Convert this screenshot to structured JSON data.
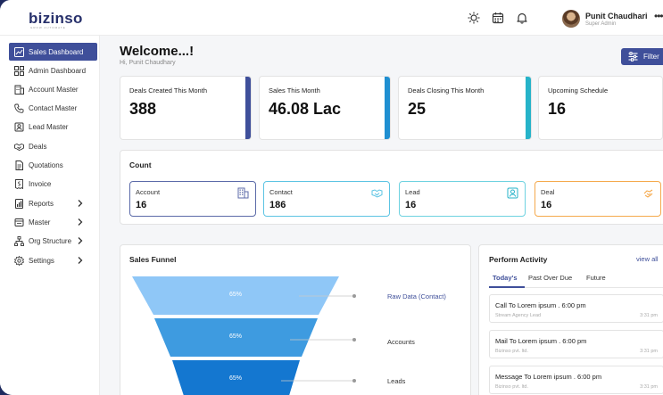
{
  "header": {
    "logo": "bizinso",
    "logo_sub": "GROW AUTOMATE",
    "user_name": "Punit Chaudhari",
    "user_role": "Super Admin",
    "more": "•••"
  },
  "sidebar": {
    "items": [
      {
        "label": "Sales Dashboard",
        "icon": "dashboard-icon"
      },
      {
        "label": "Admin Dashboard",
        "icon": "grid-icon"
      },
      {
        "label": "Account Master",
        "icon": "building-icon"
      },
      {
        "label": "Contact Master",
        "icon": "phone-icon"
      },
      {
        "label": "Lead Master",
        "icon": "lead-icon"
      },
      {
        "label": "Deals",
        "icon": "handshake-icon"
      },
      {
        "label": "Quotations",
        "icon": "document-icon"
      },
      {
        "label": "Invoice",
        "icon": "invoice-icon"
      },
      {
        "label": "Reports",
        "icon": "report-icon"
      },
      {
        "label": "Master",
        "icon": "master-icon"
      },
      {
        "label": "Org Structure",
        "icon": "org-icon"
      },
      {
        "label": "Settings",
        "icon": "gear-icon"
      }
    ]
  },
  "main": {
    "welcome": "Welcome...!",
    "greeting": "Hi, Punit Chaudhary",
    "filter_label": "Filter"
  },
  "stats": [
    {
      "label": "Deals Created This Month",
      "value": "388",
      "color": "#3f4f9a"
    },
    {
      "label": "Sales This Month",
      "value": "46.08 Lac",
      "color": "#1f8fd1"
    },
    {
      "label": "Deals Closing This Month",
      "value": "25",
      "color": "#26b3c9"
    },
    {
      "label": "Upcoming Schedule",
      "value": "16",
      "color": "#ffffff"
    }
  ],
  "count": {
    "title": "Count",
    "boxes": [
      {
        "label": "Account",
        "value": "16",
        "color": "#5b6aa8"
      },
      {
        "label": "Contact",
        "value": "186",
        "color": "#5cc4e3"
      },
      {
        "label": "Lead",
        "value": "16",
        "color": "#6ed2e0"
      },
      {
        "label": "Deal",
        "value": "16",
        "color": "#f5a94c"
      }
    ]
  },
  "funnel": {
    "title": "Sales Funnel",
    "stages": [
      {
        "pct": "65%",
        "label": "Raw Data (Contact)",
        "color": "#8fc7f7"
      },
      {
        "pct": "65%",
        "label": "Accounts",
        "color": "#3e9be0"
      },
      {
        "pct": "65%",
        "label": "Leads",
        "color": "#1477d0"
      }
    ]
  },
  "activity": {
    "title": "Perform Activity",
    "view_all": "view all",
    "tabs": [
      "Today's",
      "Past Over Due",
      "Future"
    ],
    "items": [
      {
        "title": "Call To Lorem ipsum . 6:00 pm",
        "sub": "Stream Agency Lead",
        "time": "3:31 pm"
      },
      {
        "title": "Mail To Lorem ipsum . 6:00 pm",
        "sub": "Bizinso pvt. ltd.",
        "time": "3:31 pm"
      },
      {
        "title": "Message To Lorem ipsum . 6:00 pm",
        "sub": "Bizinso pvt. ltd.",
        "time": "3:31 pm"
      }
    ]
  }
}
